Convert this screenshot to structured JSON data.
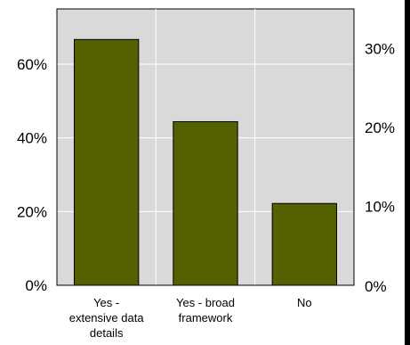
{
  "chart_data": {
    "type": "bar",
    "categories": [
      [
        "Yes -",
        "extensive data",
        "details"
      ],
      [
        "Yes - broad",
        "framework"
      ],
      [
        "No"
      ]
    ],
    "values": [
      66.7,
      44.4,
      22.2
    ],
    "title": "",
    "xlabel": "",
    "ylabel": "",
    "ylim": [
      0,
      75
    ],
    "yticks": [
      "0%",
      "20%",
      "40%",
      "60%"
    ],
    "ytick_values": [
      0,
      20,
      40,
      60
    ],
    "y2lim": [
      0,
      35
    ],
    "y2ticks": [
      "0%",
      "10%",
      "20%",
      "30%"
    ],
    "y2tick_values": [
      0,
      10,
      20,
      30
    ],
    "grid": true,
    "legend": "none",
    "colors": {
      "bar_fill": "#556000",
      "bar_stroke": "#000000",
      "plot_bg": "#d9d9d9",
      "grid": "#ffffff",
      "axis": "#000000",
      "right_edge": "#000000"
    }
  }
}
